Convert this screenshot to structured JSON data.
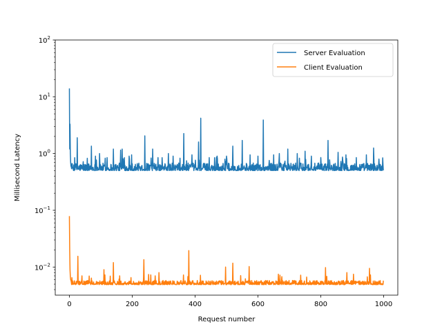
{
  "chart_data": {
    "type": "line",
    "title": "",
    "xlabel": "Request number",
    "ylabel": "Millisecond Latency",
    "yscale": "log",
    "xlim": [
      -45,
      1045
    ],
    "ylim": [
      0.0032,
      100
    ],
    "xticks": [
      0,
      200,
      400,
      600,
      800,
      1000
    ],
    "yticks": [
      0.01,
      0.1,
      1,
      10,
      100
    ],
    "ytick_labels": [
      {
        "base": "10",
        "exp": "−2"
      },
      {
        "base": "10",
        "exp": "−1"
      },
      {
        "base": "10",
        "exp": "0"
      },
      {
        "base": "10",
        "exp": "1"
      },
      {
        "base": "10",
        "exp": "2"
      }
    ],
    "grid": false,
    "legend_position": "top-right",
    "n_points": 1000,
    "series": [
      {
        "name": "Server Evaluation",
        "color": "#1f77b4",
        "baseline": 0.56,
        "noise_low": 0.5,
        "noise_high": 0.68,
        "head": [
          14.0,
          1.2,
          3.3,
          1.0,
          0.7,
          0.6,
          0.58
        ],
        "spikes": [
          [
            25,
            1.9
          ],
          [
            44,
            0.72
          ],
          [
            70,
            1.35
          ],
          [
            83,
            0.9
          ],
          [
            96,
            1.0
          ],
          [
            120,
            0.85
          ],
          [
            140,
            1.2
          ],
          [
            163,
            1.15
          ],
          [
            168,
            1.2
          ],
          [
            190,
            0.9
          ],
          [
            198,
            0.95
          ],
          [
            240,
            2.05
          ],
          [
            265,
            1.2
          ],
          [
            282,
            0.85
          ],
          [
            315,
            1.0
          ],
          [
            330,
            0.9
          ],
          [
            364,
            2.25
          ],
          [
            390,
            0.95
          ],
          [
            411,
            1.6
          ],
          [
            418,
            4.2
          ],
          [
            445,
            0.85
          ],
          [
            470,
            0.9
          ],
          [
            500,
            0.9
          ],
          [
            520,
            1.35
          ],
          [
            550,
            1.7
          ],
          [
            575,
            0.95
          ],
          [
            600,
            0.9
          ],
          [
            617,
            3.9
          ],
          [
            650,
            0.95
          ],
          [
            668,
            1.0
          ],
          [
            695,
            1.2
          ],
          [
            725,
            1.0
          ],
          [
            750,
            1.1
          ],
          [
            770,
            0.9
          ],
          [
            800,
            0.85
          ],
          [
            823,
            1.7
          ],
          [
            855,
            1.05
          ],
          [
            880,
            0.95
          ],
          [
            913,
            0.85
          ],
          [
            945,
            0.95
          ],
          [
            968,
            1.25
          ],
          [
            985,
            0.8
          ]
        ]
      },
      {
        "name": "Client Evaluation",
        "color": "#ff7f0e",
        "baseline": 0.0052,
        "noise_low": 0.0049,
        "noise_high": 0.0058,
        "head": [
          0.079,
          0.02,
          0.009,
          0.0068,
          0.006,
          0.0058,
          0.0055
        ],
        "spikes": [
          [
            8,
            0.0065
          ],
          [
            27,
            0.0155
          ],
          [
            40,
            0.007
          ],
          [
            110,
            0.009
          ],
          [
            140,
            0.012
          ],
          [
            160,
            0.007
          ],
          [
            237,
            0.0135
          ],
          [
            285,
            0.008
          ],
          [
            380,
            0.0195
          ],
          [
            497,
            0.01
          ],
          [
            520,
            0.0117
          ],
          [
            572,
            0.0102
          ],
          [
            670,
            0.0072
          ],
          [
            815,
            0.0098
          ],
          [
            883,
            0.008
          ],
          [
            955,
            0.0095
          ]
        ]
      }
    ]
  }
}
